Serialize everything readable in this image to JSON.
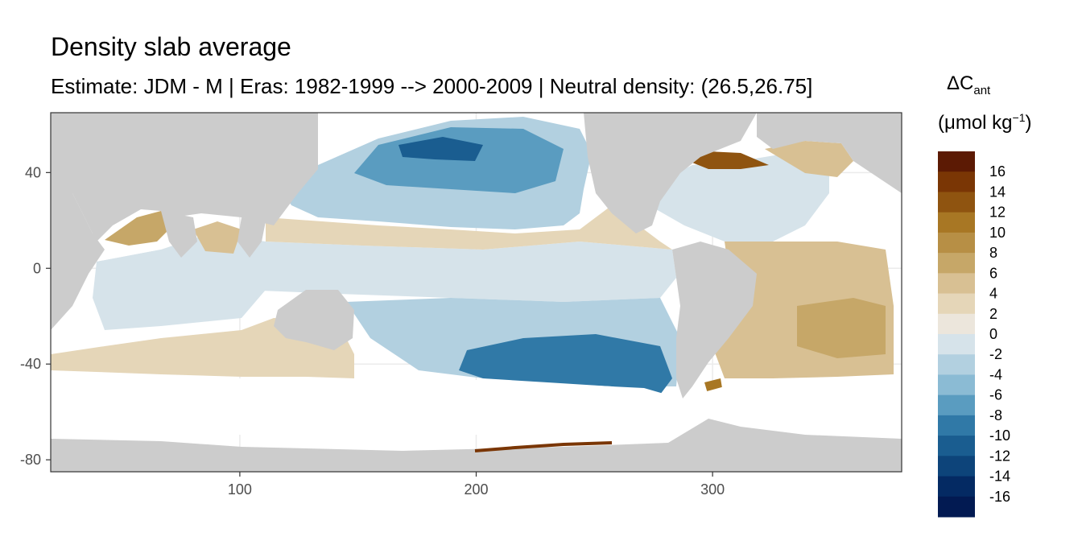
{
  "chart_data": {
    "type": "heatmap",
    "title": "Density slab average",
    "subtitle": "Estimate: JDM - M | Eras: 1982-1999 --> 2000-2009 | Neutral density: (26.5,26.75]",
    "xlabel": "",
    "ylabel": "",
    "xlim": [
      20,
      380
    ],
    "ylim": [
      -85,
      65
    ],
    "x_ticks": [
      "100",
      "200",
      "300"
    ],
    "x_tick_values": [
      100,
      200,
      300
    ],
    "y_ticks": [
      "40",
      "0",
      "-40",
      "-80"
    ],
    "y_tick_values": [
      40,
      0,
      -40,
      -80
    ],
    "grid": true,
    "background": "land in grey, ocean colored by value, missing ocean data white",
    "legend": {
      "position": "right",
      "title_main": "ΔC",
      "title_sub": "ant",
      "units": "(μmol kg",
      "units_sup": "−1",
      "units_close": ")",
      "bins": [
        {
          "label": "16",
          "color": "#5c1a04"
        },
        {
          "label": "14",
          "color": "#7a3605"
        },
        {
          "label": "12",
          "color": "#8f5410"
        },
        {
          "label": "10",
          "color": "#a87724"
        },
        {
          "label": "8",
          "color": "#b78f45"
        },
        {
          "label": "6",
          "color": "#c6a768"
        },
        {
          "label": "4",
          "color": "#d8c093"
        },
        {
          "label": "2",
          "color": "#e5d6b8"
        },
        {
          "label": "0",
          "color": "#ece6dc"
        },
        {
          "label": "-2",
          "color": "#d6e3ea"
        },
        {
          "label": "-4",
          "color": "#b2d0e0"
        },
        {
          "label": "-6",
          "color": "#8bbbd4"
        },
        {
          "label": "-8",
          "color": "#5a9cc0"
        },
        {
          "label": "-10",
          "color": "#3079a7"
        },
        {
          "label": "-12",
          "color": "#1a5d90"
        },
        {
          "label": "-14",
          "color": "#0d447a"
        },
        {
          "label": "-16",
          "color": "#042a63"
        },
        {
          "label": "",
          "color": "#021a52"
        }
      ]
    },
    "colors": {
      "land": "#cccccc",
      "no_data": "#ffffff",
      "panel_border": "#333333",
      "grid": "#ebebeb"
    }
  }
}
